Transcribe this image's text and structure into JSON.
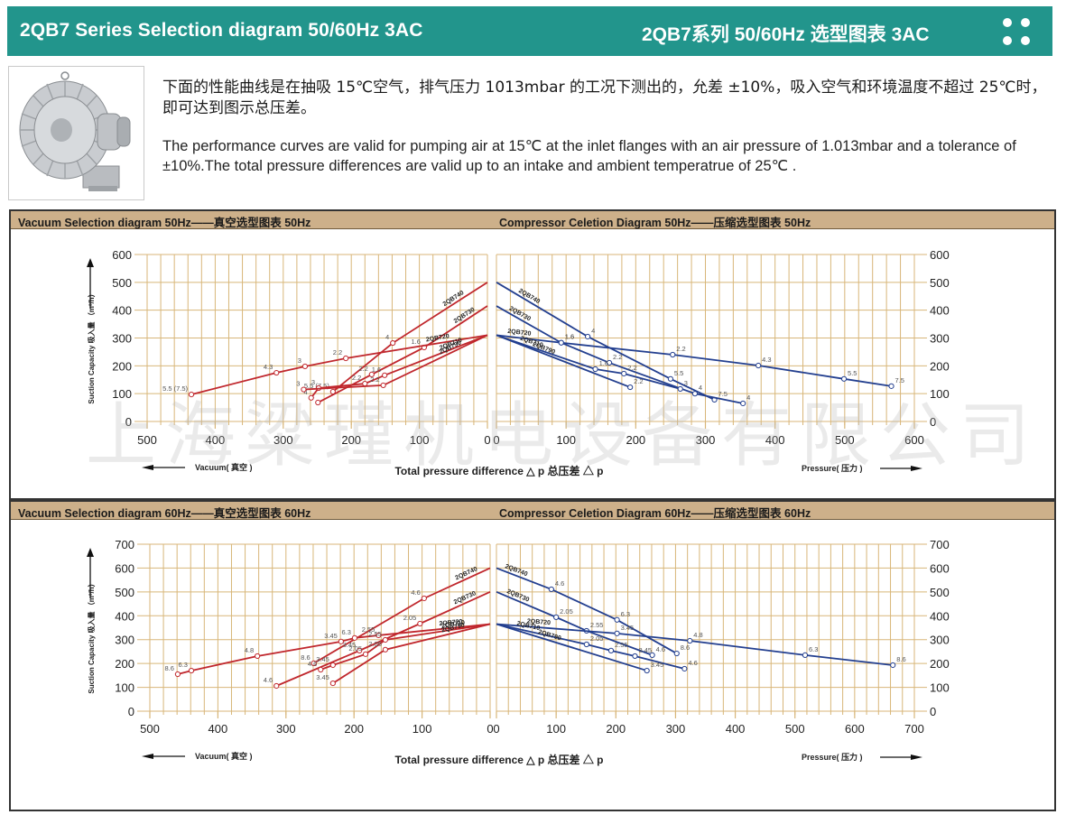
{
  "banner": {
    "title_en": "2QB7 Series Selection diagram 50/60Hz 3AC",
    "title_cn": "2QB7系列 50/60Hz 选型图表 3AC",
    "icon": "four-dots-icon"
  },
  "intro": {
    "image_alt": "2QB7 side channel blower product photo",
    "text_cn": "下面的性能曲线是在抽吸 15℃空气，排气压力 1013mbar 的工况下测出的，允差 ±10%，吸入空气和环境温度不超过 25℃时，即可达到图示总压差。",
    "text_en": "The performance curves are valid for pumping air at 15℃ at the inlet flanges with an air pressure of 1.013mbar and a tolerance of ±10%.The total pressure differences are valid up to an intake and ambient temperatrue of 25℃ ."
  },
  "panels": [
    {
      "header_left": "Vacuum Selection diagram 50Hz——真空选型图表 50Hz",
      "header_right": "Compressor Celetion Diagram 50Hz——压缩选型图表 50Hz"
    },
    {
      "header_left": "Vacuum Selection diagram 60Hz——真空选型图表 60Hz",
      "header_right": "Compressor Celetion Diagram 60Hz——压缩选型图表 60Hz"
    }
  ],
  "watermark": "上海粱瑾机电设备有限公司",
  "colors": {
    "vacuum_line": "#c0272d",
    "compressor_line": "#233f8f",
    "grid": "#d8b679",
    "header_bg": "#cdb08a",
    "banner_bg": "#22958c"
  },
  "chart_data": [
    {
      "type": "line",
      "title": "Vacuum Selection diagram 50Hz",
      "side": "vacuum",
      "xlabel": "Total pressure difference △ p 总压差 △ p",
      "xdir_label": "Vacuum( 真空 )",
      "ylabel": "Suction Capacity 吸入量 （m³/h）",
      "xlim": [
        0,
        500
      ],
      "ylim": [
        0,
        600
      ],
      "xticks": [
        500,
        400,
        300,
        200,
        100,
        0
      ],
      "yticks": [
        0,
        100,
        200,
        300,
        400,
        500,
        600
      ],
      "grid": true,
      "series": [
        {
          "name": "2QB740",
          "points": [
            [
              0,
              500
            ],
            [
              139,
              282,
              "4"
            ],
            [
              227,
              107,
              "5.5 (7.5)"
            ]
          ]
        },
        {
          "name": "2QB730",
          "points": [
            [
              0,
              415
            ],
            [
              93,
              266,
              "1.6"
            ],
            [
              170,
              169,
              "2.2"
            ],
            [
              249,
              68,
              "4"
            ]
          ]
        },
        {
          "name": "2QB720",
          "points": [
            [
              0,
              310
            ],
            [
              208,
              227,
              "2.2"
            ],
            [
              268,
              198,
              "3"
            ],
            [
              310,
              175,
              "4.3"
            ],
            [
              435,
              97,
              "5.5 (7.5)"
            ]
          ]
        },
        {
          "name": "2QB710",
          "points": [
            [
              0,
              310
            ],
            [
              151,
              166,
              "1.6"
            ],
            [
              180,
              136,
              "2.2"
            ],
            [
              248,
              120,
              "3"
            ],
            [
              259,
              85,
              "4"
            ]
          ]
        },
        {
          "name": "2QB790",
          "points": [
            [
              0,
              310
            ],
            [
              153,
              130,
              "2.2"
            ],
            [
              270,
              115,
              "3"
            ]
          ]
        }
      ]
    },
    {
      "type": "line",
      "title": "Compressor Celetion Diagram 50Hz",
      "side": "compressor",
      "xdir_label": "Pressure( 压力 )",
      "xlim": [
        0,
        600
      ],
      "ylim": [
        0,
        600
      ],
      "xticks": [
        0,
        100,
        200,
        300,
        400,
        500,
        600
      ],
      "yticks": [
        0,
        100,
        200,
        300,
        400,
        500,
        600
      ],
      "grid": true,
      "series": [
        {
          "name": "2QB740",
          "points": [
            [
              0,
              500
            ],
            [
              131,
              305,
              "4"
            ],
            [
              250,
              153,
              "5.5"
            ],
            [
              313,
              78,
              "7.5"
            ]
          ]
        },
        {
          "name": "2QB730",
          "points": [
            [
              0,
              415
            ],
            [
              93,
              283,
              "1.6"
            ],
            [
              162,
              211,
              "2.2"
            ],
            [
              285,
              100,
              "4"
            ],
            [
              354,
              65,
              "4"
            ]
          ]
        },
        {
          "name": "2QB720",
          "points": [
            [
              0,
              310
            ],
            [
              93,
              283,
              "1.6"
            ],
            [
              253,
              240,
              "2.2"
            ],
            [
              376,
              201,
              "4.3"
            ],
            [
              499,
              153,
              "5.5"
            ],
            [
              567,
              127,
              "7.5"
            ]
          ]
        },
        {
          "name": "2QB710",
          "points": [
            [
              0,
              310
            ],
            [
              142,
              188,
              "1.6"
            ],
            [
              183,
              172,
              "2.2"
            ],
            [
              264,
              117,
              "3"
            ]
          ]
        },
        {
          "name": "2QB790",
          "points": [
            [
              0,
              310
            ],
            [
              192,
              123,
              "2.2"
            ]
          ]
        }
      ]
    },
    {
      "type": "line",
      "title": "Vacuum Selection diagram 60Hz",
      "side": "vacuum",
      "xlabel": "Total pressure difference △ p 总压差 △ p",
      "xdir_label": "Vacuum( 真空 )",
      "ylabel": "Suction Capacity 吸入量 （m³/h）",
      "xlim": [
        0,
        500
      ],
      "ylim": [
        0,
        700
      ],
      "xticks": [
        500,
        400,
        300,
        200,
        100,
        0
      ],
      "yticks": [
        0,
        100,
        200,
        300,
        400,
        500,
        600,
        700
      ],
      "grid": true,
      "series": [
        {
          "name": "2QB740",
          "points": [
            [
              0,
              600
            ],
            [
              97,
              473,
              "4.6"
            ],
            [
              259,
              201,
              "8.6"
            ]
          ]
        },
        {
          "name": "2QB730",
          "points": [
            [
              0,
              500
            ],
            [
              103,
              367,
              "2.05"
            ],
            [
              192,
              254,
              "3.45"
            ],
            [
              314,
              106,
              "4.6"
            ]
          ]
        },
        {
          "name": "2QB720",
          "points": [
            [
              0,
              365
            ],
            [
              164,
              318,
              "2.55"
            ],
            [
              199,
              307,
              "6.3"
            ],
            [
              219,
              292,
              "3.45"
            ],
            [
              342,
              231,
              "4.8"
            ],
            [
              439,
              170,
              "6.3"
            ],
            [
              459,
              155,
              "8.6"
            ]
          ]
        },
        {
          "name": "2QB710",
          "points": [
            [
              0,
              365
            ],
            [
              154,
              299,
              "2.55"
            ],
            [
              183,
              239,
              "2.05"
            ],
            [
              231,
              193,
              "3.45"
            ],
            [
              249,
              174,
              "4.6"
            ]
          ]
        },
        {
          "name": "2QB790",
          "points": [
            [
              0,
              365
            ],
            [
              154,
              258,
              "2.05"
            ],
            [
              231,
              117,
              "3.45"
            ]
          ]
        }
      ]
    },
    {
      "type": "line",
      "title": "Compressor Celetion Diagram 60Hz",
      "side": "compressor",
      "xdir_label": "Pressure( 压力 )",
      "xlim": [
        0,
        700
      ],
      "ylim": [
        0,
        700
      ],
      "xticks": [
        0,
        100,
        200,
        300,
        400,
        500,
        600,
        700
      ],
      "yticks": [
        0,
        100,
        200,
        300,
        400,
        500,
        600,
        700
      ],
      "grid": true,
      "series": [
        {
          "name": "2QB740",
          "points": [
            [
              0,
              600
            ],
            [
              92,
              511,
              "4.6"
            ],
            [
              202,
              383,
              "6.3"
            ],
            [
              302,
              242,
              "8.6"
            ]
          ]
        },
        {
          "name": "2QB730",
          "points": [
            [
              0,
              500
            ],
            [
              100,
              394,
              "2.05"
            ],
            [
              151,
              337,
              "2.55"
            ],
            [
              261,
              235,
              "4.6"
            ]
          ]
        },
        {
          "name": "2QB720",
          "points": [
            [
              0,
              365
            ],
            [
              202,
              326,
              "3.45"
            ],
            [
              324,
              295,
              "4.8"
            ],
            [
              517,
              235,
              "6.3"
            ],
            [
              664,
              193,
              "8.6"
            ]
          ]
        },
        {
          "name": "2QB710",
          "points": [
            [
              0,
              365
            ],
            [
              151,
              280,
              "2.05"
            ],
            [
              192,
              254,
              "2.55"
            ],
            [
              232,
              231,
              "3.45"
            ],
            [
              315,
              178,
              "4.6"
            ]
          ]
        },
        {
          "name": "2QB790",
          "points": [
            [
              0,
              365
            ],
            [
              252,
              170,
              "3.45"
            ]
          ]
        }
      ]
    }
  ]
}
